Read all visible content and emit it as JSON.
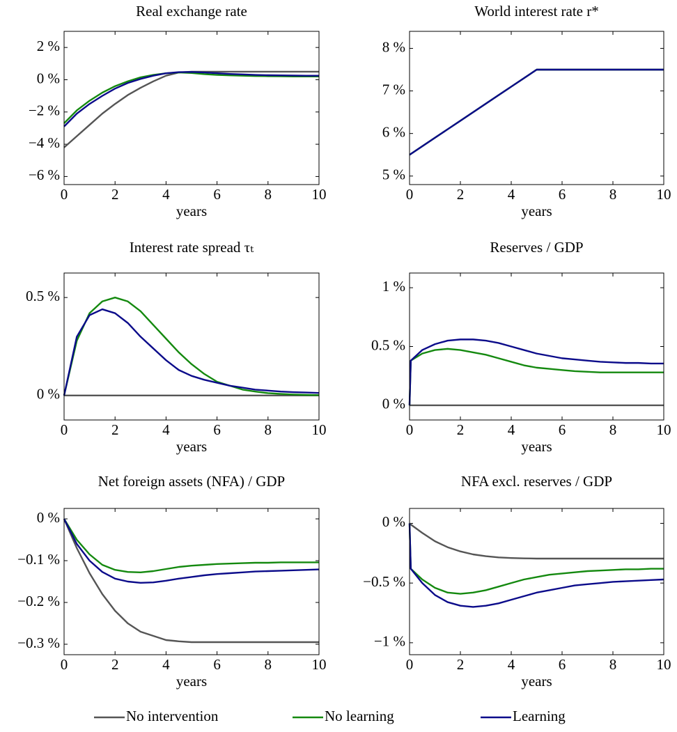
{
  "chart_data": [
    {
      "type": "line",
      "title": "Real exchange rate",
      "xlabel": "years",
      "x": [
        0,
        0.5,
        1,
        1.5,
        2,
        2.5,
        3,
        3.5,
        4,
        4.5,
        5,
        5.5,
        6,
        6.5,
        7,
        7.5,
        8,
        8.5,
        9,
        9.5,
        10
      ],
      "xlim": [
        0,
        10
      ],
      "xticks": [
        0,
        2,
        4,
        6,
        8,
        10
      ],
      "ylim": [
        -6.5,
        3
      ],
      "yticks": [
        {
          "value": -6,
          "label": "−6 %"
        },
        {
          "value": -4,
          "label": "−4 %"
        },
        {
          "value": -2,
          "label": "−2 %"
        },
        {
          "value": 0,
          "label": "0 %"
        },
        {
          "value": 2,
          "label": "2 %"
        }
      ],
      "series": [
        {
          "color": "#555555",
          "values": [
            -4.2,
            -3.5,
            -2.8,
            -2.1,
            -1.5,
            -0.95,
            -0.5,
            -0.1,
            0.25,
            0.45,
            0.5,
            0.5,
            0.5,
            0.5,
            0.5,
            0.5,
            0.5,
            0.5,
            0.5,
            0.5,
            0.5
          ]
        },
        {
          "color": "#14890f",
          "values": [
            -2.7,
            -1.9,
            -1.3,
            -0.8,
            -0.4,
            -0.1,
            0.15,
            0.3,
            0.4,
            0.45,
            0.42,
            0.35,
            0.3,
            0.27,
            0.25,
            0.23,
            0.22,
            0.21,
            0.2,
            0.2,
            0.2
          ]
        },
        {
          "color": "#0b0b8a",
          "values": [
            -2.9,
            -2.1,
            -1.5,
            -1.0,
            -0.55,
            -0.2,
            0.05,
            0.25,
            0.4,
            0.47,
            0.48,
            0.45,
            0.4,
            0.36,
            0.33,
            0.3,
            0.28,
            0.27,
            0.26,
            0.25,
            0.25
          ]
        }
      ]
    },
    {
      "type": "line",
      "title": "World interest rate r*",
      "xlabel": "years",
      "x": [
        0,
        0.5,
        1,
        1.5,
        2,
        2.5,
        3,
        3.5,
        4,
        4.5,
        5,
        5.5,
        6,
        6.5,
        7,
        7.5,
        8,
        8.5,
        9,
        9.5,
        10
      ],
      "xlim": [
        0,
        10
      ],
      "xticks": [
        0,
        2,
        4,
        6,
        8,
        10
      ],
      "ylim": [
        4.8,
        8.4
      ],
      "yticks": [
        {
          "value": 5,
          "label": "5 %"
        },
        {
          "value": 6,
          "label": "6 %"
        },
        {
          "value": 7,
          "label": "7 %"
        },
        {
          "value": 8,
          "label": "8 %"
        }
      ],
      "series": [
        {
          "color": "#555555",
          "values": [
            5.5,
            5.7,
            5.9,
            6.1,
            6.3,
            6.5,
            6.7,
            6.9,
            7.1,
            7.3,
            7.5,
            7.5,
            7.5,
            7.5,
            7.5,
            7.5,
            7.5,
            7.5,
            7.5,
            7.5,
            7.5
          ]
        },
        {
          "color": "#14890f",
          "values": [
            5.5,
            5.7,
            5.9,
            6.1,
            6.3,
            6.5,
            6.7,
            6.9,
            7.1,
            7.3,
            7.5,
            7.5,
            7.5,
            7.5,
            7.5,
            7.5,
            7.5,
            7.5,
            7.5,
            7.5,
            7.5
          ]
        },
        {
          "color": "#0b0b8a",
          "values": [
            5.5,
            5.7,
            5.9,
            6.1,
            6.3,
            6.5,
            6.7,
            6.9,
            7.1,
            7.3,
            7.5,
            7.5,
            7.5,
            7.5,
            7.5,
            7.5,
            7.5,
            7.5,
            7.5,
            7.5,
            7.5
          ]
        }
      ]
    },
    {
      "type": "line",
      "title": "Interest rate spread τₜ",
      "xlabel": "years",
      "x": [
        0,
        0.5,
        1,
        1.5,
        2,
        2.5,
        3,
        3.5,
        4,
        4.5,
        5,
        5.5,
        6,
        6.5,
        7,
        7.5,
        8,
        8.5,
        9,
        9.5,
        10
      ],
      "xlim": [
        0,
        10
      ],
      "xticks": [
        0,
        2,
        4,
        6,
        8,
        10
      ],
      "ylim": [
        -0.125,
        0.625
      ],
      "yticks": [
        {
          "value": 0,
          "label": "0 %"
        },
        {
          "value": 0.5,
          "label": "0.5 %"
        }
      ],
      "series": [
        {
          "color": "#555555",
          "values": [
            0,
            0,
            0,
            0,
            0,
            0,
            0,
            0,
            0,
            0,
            0,
            0,
            0,
            0,
            0,
            0,
            0,
            0,
            0,
            0,
            0
          ]
        },
        {
          "color": "#14890f",
          "values": [
            0,
            0.28,
            0.42,
            0.48,
            0.5,
            0.48,
            0.43,
            0.36,
            0.29,
            0.22,
            0.16,
            0.11,
            0.07,
            0.05,
            0.03,
            0.02,
            0.012,
            0.008,
            0.005,
            0.003,
            0.002
          ]
        },
        {
          "color": "#0b0b8a",
          "values": [
            0,
            0.3,
            0.41,
            0.44,
            0.42,
            0.37,
            0.3,
            0.24,
            0.18,
            0.13,
            0.1,
            0.08,
            0.065,
            0.05,
            0.04,
            0.03,
            0.025,
            0.02,
            0.017,
            0.015,
            0.013
          ]
        }
      ]
    },
    {
      "type": "line",
      "title": "Reserves / GDP",
      "xlabel": "years",
      "x": [
        0,
        0.05,
        0.5,
        1,
        1.5,
        2,
        2.5,
        3,
        3.5,
        4,
        4.5,
        5,
        5.5,
        6,
        6.5,
        7,
        7.5,
        8,
        8.5,
        9,
        9.5,
        10
      ],
      "xlim": [
        0,
        10
      ],
      "xticks": [
        0,
        2,
        4,
        6,
        8,
        10
      ],
      "ylim": [
        -0.125,
        1.125
      ],
      "yticks": [
        {
          "value": 0,
          "label": "0 %"
        },
        {
          "value": 0.5,
          "label": "0.5 %"
        },
        {
          "value": 1,
          "label": "1 %"
        }
      ],
      "series": [
        {
          "color": "#555555",
          "values": [
            0,
            0,
            0,
            0,
            0,
            0,
            0,
            0,
            0,
            0,
            0,
            0,
            0,
            0,
            0,
            0,
            0,
            0,
            0,
            0,
            0,
            0
          ]
        },
        {
          "color": "#14890f",
          "values": [
            0,
            0.38,
            0.44,
            0.47,
            0.48,
            0.47,
            0.45,
            0.43,
            0.4,
            0.37,
            0.34,
            0.32,
            0.31,
            0.3,
            0.29,
            0.285,
            0.28,
            0.28,
            0.28,
            0.28,
            0.28,
            0.28
          ]
        },
        {
          "color": "#0b0b8a",
          "values": [
            0,
            0.38,
            0.47,
            0.52,
            0.55,
            0.56,
            0.56,
            0.55,
            0.53,
            0.5,
            0.47,
            0.44,
            0.42,
            0.4,
            0.39,
            0.38,
            0.37,
            0.365,
            0.36,
            0.36,
            0.355,
            0.355
          ]
        }
      ]
    },
    {
      "type": "line",
      "title": "Net foreign assets (NFA) / GDP",
      "xlabel": "years",
      "x": [
        0,
        0.5,
        1,
        1.5,
        2,
        2.5,
        3,
        3.5,
        4,
        4.5,
        5,
        5.5,
        6,
        6.5,
        7,
        7.5,
        8,
        8.5,
        9,
        9.5,
        10
      ],
      "xlim": [
        0,
        10
      ],
      "xticks": [
        0,
        2,
        4,
        6,
        8,
        10
      ],
      "ylim": [
        -0.325,
        0.025
      ],
      "yticks": [
        {
          "value": -0.3,
          "label": "−0.3 %"
        },
        {
          "value": -0.2,
          "label": "−0.2 %"
        },
        {
          "value": -0.1,
          "label": "−0.1 %"
        },
        {
          "value": 0,
          "label": "0 %"
        }
      ],
      "series": [
        {
          "color": "#555555",
          "values": [
            0,
            -0.07,
            -0.13,
            -0.18,
            -0.22,
            -0.25,
            -0.27,
            -0.28,
            -0.29,
            -0.293,
            -0.295,
            -0.295,
            -0.295,
            -0.295,
            -0.295,
            -0.295,
            -0.295,
            -0.295,
            -0.295,
            -0.295,
            -0.295
          ]
        },
        {
          "color": "#14890f",
          "values": [
            0,
            -0.05,
            -0.085,
            -0.11,
            -0.122,
            -0.127,
            -0.128,
            -0.125,
            -0.12,
            -0.115,
            -0.112,
            -0.11,
            -0.108,
            -0.107,
            -0.106,
            -0.105,
            -0.105,
            -0.104,
            -0.104,
            -0.104,
            -0.104
          ]
        },
        {
          "color": "#0b0b8a",
          "values": [
            0,
            -0.06,
            -0.1,
            -0.127,
            -0.143,
            -0.15,
            -0.153,
            -0.152,
            -0.148,
            -0.143,
            -0.139,
            -0.135,
            -0.132,
            -0.13,
            -0.128,
            -0.126,
            -0.125,
            -0.124,
            -0.123,
            -0.122,
            -0.121
          ]
        }
      ]
    },
    {
      "type": "line",
      "title": "NFA excl. reserves / GDP",
      "xlabel": "years",
      "x": [
        0,
        0.05,
        0.5,
        1,
        1.5,
        2,
        2.5,
        3,
        3.5,
        4,
        4.5,
        5,
        5.5,
        6,
        6.5,
        7,
        7.5,
        8,
        8.5,
        9,
        9.5,
        10
      ],
      "xlim": [
        0,
        10
      ],
      "xticks": [
        0,
        2,
        4,
        6,
        8,
        10
      ],
      "ylim": [
        -1.1,
        0.125
      ],
      "yticks": [
        {
          "value": -1,
          "label": "−1 %"
        },
        {
          "value": -0.5,
          "label": "−0.5 %"
        },
        {
          "value": 0,
          "label": "0 %"
        }
      ],
      "series": [
        {
          "color": "#555555",
          "values": [
            0,
            -0.01,
            -0.08,
            -0.15,
            -0.2,
            -0.235,
            -0.26,
            -0.275,
            -0.285,
            -0.29,
            -0.293,
            -0.295,
            -0.295,
            -0.295,
            -0.295,
            -0.295,
            -0.295,
            -0.295,
            -0.295,
            -0.295,
            -0.295,
            -0.295
          ]
        },
        {
          "color": "#14890f",
          "values": [
            0,
            -0.38,
            -0.47,
            -0.54,
            -0.58,
            -0.59,
            -0.58,
            -0.56,
            -0.53,
            -0.5,
            -0.47,
            -0.45,
            -0.43,
            -0.42,
            -0.41,
            -0.4,
            -0.395,
            -0.39,
            -0.385,
            -0.385,
            -0.38,
            -0.38
          ]
        },
        {
          "color": "#0b0b8a",
          "values": [
            0,
            -0.38,
            -0.5,
            -0.6,
            -0.66,
            -0.69,
            -0.7,
            -0.69,
            -0.67,
            -0.64,
            -0.61,
            -0.58,
            -0.56,
            -0.54,
            -0.52,
            -0.51,
            -0.5,
            -0.49,
            -0.485,
            -0.48,
            -0.475,
            -0.47
          ]
        }
      ]
    }
  ],
  "legend": [
    {
      "name": "No intervention",
      "color": "#555555"
    },
    {
      "name": "No learning",
      "color": "#14890f"
    },
    {
      "name": "Learning",
      "color": "#0b0b8a"
    }
  ]
}
